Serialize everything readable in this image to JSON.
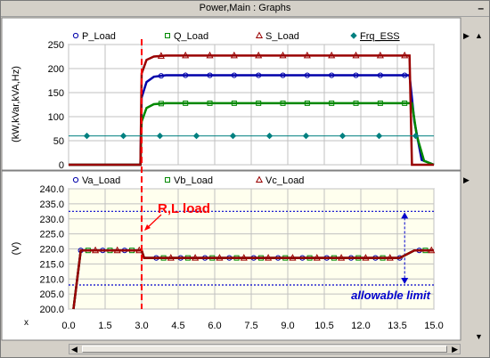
{
  "window": {
    "title": "Power,Main : Graphs",
    "minimize_label": "–"
  },
  "chart_data": [
    {
      "type": "line",
      "ylabel": "(kW,kVar,kVA,Hz)",
      "ylim": [
        0,
        250
      ],
      "yticks": [
        0,
        50,
        100,
        150,
        200,
        250
      ],
      "xlim": [
        0,
        15
      ],
      "legend_position": "top",
      "series": [
        {
          "name": "P_Load",
          "color": "#0000aa",
          "marker": "circle",
          "x": [
            0,
            2.95,
            3.0,
            3.2,
            3.5,
            4.0,
            13.9,
            14.0,
            14.2,
            14.5,
            15.0
          ],
          "y": [
            0,
            0,
            140,
            172,
            183,
            186,
            186,
            186,
            90,
            10,
            0
          ]
        },
        {
          "name": "Q_Load",
          "color": "#008800",
          "marker": "square",
          "x": [
            0,
            2.95,
            3.0,
            3.2,
            3.5,
            4.0,
            14.0,
            14.1,
            14.3,
            14.6,
            15.0
          ],
          "y": [
            0,
            0,
            90,
            118,
            126,
            128,
            128,
            128,
            60,
            8,
            0
          ]
        },
        {
          "name": "S_Load",
          "color": "#990000",
          "marker": "triangle",
          "x": [
            0,
            2.95,
            3.0,
            3.2,
            3.5,
            4.0,
            13.9,
            14.0,
            14.1,
            14.6,
            15.0
          ],
          "y": [
            0,
            0,
            190,
            218,
            225,
            227,
            227,
            227,
            0,
            0,
            0
          ]
        },
        {
          "name": "Frq_ESS",
          "color": "#008080",
          "marker": "diamond",
          "x": [
            0,
            15
          ],
          "y": [
            60,
            60
          ]
        }
      ]
    },
    {
      "type": "line",
      "ylabel": "(V)",
      "xlabel": "x",
      "ylim": [
        200,
        240
      ],
      "yticks": [
        200.0,
        205.0,
        210.0,
        215.0,
        220.0,
        225.0,
        230.0,
        235.0,
        240.0
      ],
      "xlim": [
        0,
        15
      ],
      "xticks": [
        0.0,
        1.5,
        3.0,
        4.5,
        6.0,
        7.5,
        9.0,
        10.5,
        12.0,
        13.5,
        15.0
      ],
      "legend_position": "top",
      "series": [
        {
          "name": "Va_Load",
          "color": "#0000aa",
          "marker": "circle",
          "x": [
            0.2,
            0.5,
            3.0,
            3.1,
            13.6,
            14.2,
            15.0
          ],
          "y": [
            200,
            219.5,
            219.5,
            217,
            217,
            219.5,
            219.5
          ]
        },
        {
          "name": "Vb_Load",
          "color": "#008800",
          "marker": "square",
          "x": [
            0.2,
            0.5,
            3.0,
            3.1,
            13.6,
            14.2,
            15.0
          ],
          "y": [
            200,
            219.5,
            219.5,
            217,
            217,
            219.5,
            219.5
          ]
        },
        {
          "name": "Vc_Load",
          "color": "#990000",
          "marker": "triangle",
          "x": [
            0.2,
            0.5,
            3.0,
            3.1,
            13.6,
            14.2,
            15.0
          ],
          "y": [
            200,
            219.5,
            219.5,
            217,
            217,
            219.5,
            219.5
          ]
        }
      ],
      "limits": [
        232.5,
        208
      ],
      "event_x": 3.0,
      "annotations": {
        "event": "R,L load",
        "limit": "allowable limit"
      }
    }
  ],
  "colors": {
    "event_line": "#ff0000",
    "limit_line": "#0000cc",
    "annotation_text": "#0000cc",
    "event_text": "#ff0000"
  }
}
